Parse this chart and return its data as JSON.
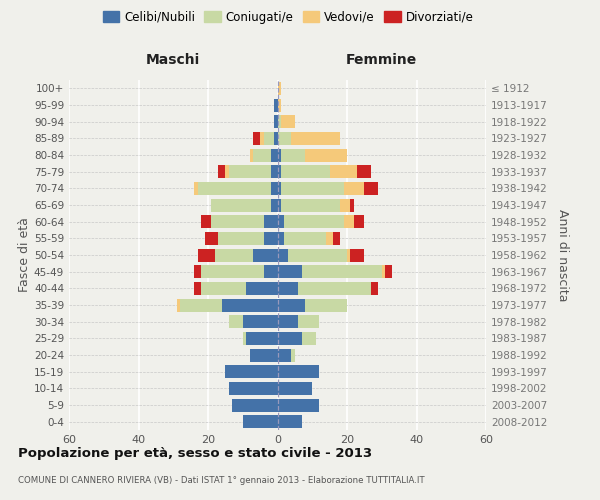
{
  "age_groups": [
    "0-4",
    "5-9",
    "10-14",
    "15-19",
    "20-24",
    "25-29",
    "30-34",
    "35-39",
    "40-44",
    "45-49",
    "50-54",
    "55-59",
    "60-64",
    "65-69",
    "70-74",
    "75-79",
    "80-84",
    "85-89",
    "90-94",
    "95-99",
    "100+"
  ],
  "birth_years": [
    "2008-2012",
    "2003-2007",
    "1998-2002",
    "1993-1997",
    "1988-1992",
    "1983-1987",
    "1978-1982",
    "1973-1977",
    "1968-1972",
    "1963-1967",
    "1958-1962",
    "1953-1957",
    "1948-1952",
    "1943-1947",
    "1938-1942",
    "1933-1937",
    "1928-1932",
    "1923-1927",
    "1918-1922",
    "1913-1917",
    "≤ 1912"
  ],
  "males": {
    "celibe": [
      10,
      13,
      14,
      15,
      8,
      9,
      10,
      16,
      9,
      4,
      7,
      4,
      4,
      2,
      2,
      2,
      2,
      1,
      1,
      1,
      0
    ],
    "coniugato": [
      0,
      0,
      0,
      0,
      0,
      1,
      4,
      12,
      13,
      18,
      11,
      13,
      15,
      17,
      21,
      12,
      5,
      3,
      0,
      0,
      0
    ],
    "vedovo": [
      0,
      0,
      0,
      0,
      0,
      0,
      0,
      1,
      0,
      0,
      0,
      0,
      0,
      0,
      1,
      1,
      1,
      1,
      0,
      0,
      0
    ],
    "divorziato": [
      0,
      0,
      0,
      0,
      0,
      0,
      0,
      0,
      2,
      2,
      5,
      4,
      3,
      0,
      0,
      2,
      0,
      2,
      0,
      0,
      0
    ]
  },
  "females": {
    "nubile": [
      7,
      12,
      10,
      12,
      4,
      7,
      6,
      8,
      6,
      7,
      3,
      2,
      2,
      1,
      1,
      1,
      1,
      0,
      0,
      0,
      0
    ],
    "coniugata": [
      0,
      0,
      0,
      0,
      1,
      4,
      6,
      12,
      21,
      23,
      17,
      12,
      17,
      17,
      18,
      14,
      7,
      4,
      1,
      0,
      0
    ],
    "vedova": [
      0,
      0,
      0,
      0,
      0,
      0,
      0,
      0,
      0,
      1,
      1,
      2,
      3,
      3,
      6,
      8,
      12,
      14,
      4,
      1,
      1
    ],
    "divorziata": [
      0,
      0,
      0,
      0,
      0,
      0,
      0,
      0,
      2,
      2,
      4,
      2,
      3,
      1,
      4,
      4,
      0,
      0,
      0,
      0,
      0
    ]
  },
  "colors": {
    "celibe_nubile": "#4472a8",
    "coniugato_a": "#c8d9a4",
    "vedovo_a": "#f5c97a",
    "divorziato_a": "#cc2222"
  },
  "xlim": 60,
  "title": "Popolazione per età, sesso e stato civile - 2013",
  "subtitle": "COMUNE DI CANNERO RIVIERA (VB) - Dati ISTAT 1° gennaio 2013 - Elaborazione TUTTITALIA.IT",
  "ylabel_left": "Fasce di età",
  "ylabel_right": "Anni di nascita",
  "xlabel_left": "Maschi",
  "xlabel_right": "Femmine",
  "legend_labels": [
    "Celibi/Nubili",
    "Coniugati/e",
    "Vedovi/e",
    "Divorziati/e"
  ],
  "bg_color": "#f0f0eb"
}
